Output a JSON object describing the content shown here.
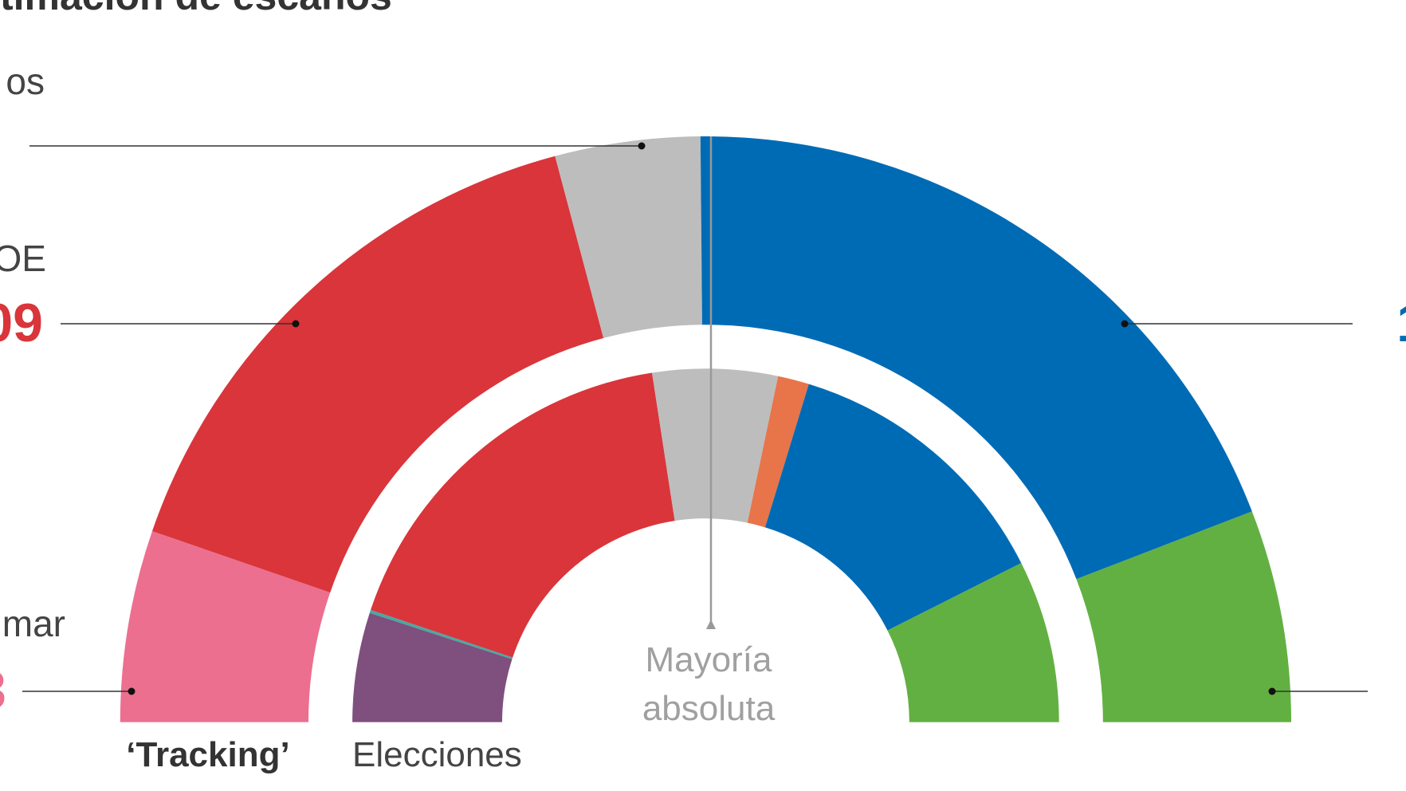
{
  "chart_data": {
    "type": "parliament",
    "title": "timación de escaños",
    "rings": [
      {
        "label": "‘Tracking’",
        "values": [
          37,
          109,
          28,
          135,
          41
        ],
        "colors": [
          "#ec6f8f",
          "#d9353a",
          "#bdbdbd",
          "#006bb5",
          "#62b042"
        ]
      },
      {
        "label": "Elecciones",
        "values": [
          35,
          1,
          122,
          40,
          10,
          90,
          52
        ],
        "colors": [
          "#7f4f7e",
          "#4aa7a4",
          "#d9353a",
          "#bdbdbd",
          "#e8744a",
          "#006bb5",
          "#62b042"
        ]
      }
    ],
    "majority": {
      "value": 176,
      "label": [
        "Mayoría",
        "absoluta"
      ]
    },
    "callouts": [
      {
        "name": "os",
        "color": "#444444"
      },
      {
        "name": "OE",
        "value_label": "09",
        "color": "#d9353a"
      },
      {
        "name": "mar",
        "value_label": "3",
        "color": "#ec6f8f"
      },
      {
        "value_label": "1",
        "color": "#006bb5"
      }
    ]
  }
}
